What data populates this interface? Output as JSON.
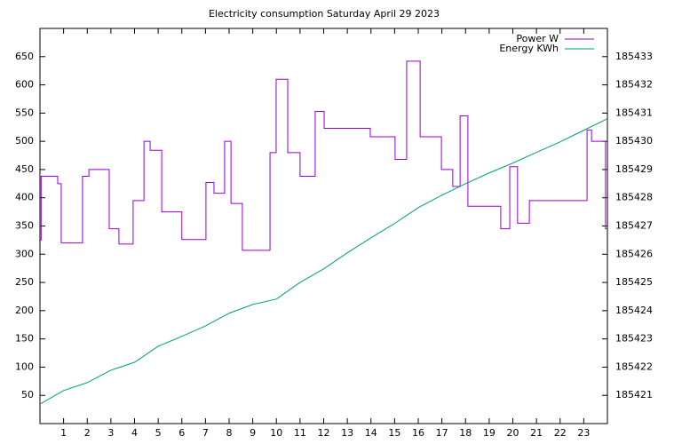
{
  "chart_data": {
    "type": "line",
    "title": "Electricity consumption Saturday April 29 2023",
    "xlim": [
      0,
      24
    ],
    "xticks": [
      1,
      2,
      3,
      4,
      5,
      6,
      7,
      8,
      9,
      10,
      11,
      12,
      13,
      14,
      15,
      16,
      17,
      18,
      19,
      20,
      21,
      22,
      23
    ],
    "ylim": [
      0,
      700
    ],
    "yticks": [
      50,
      100,
      150,
      200,
      250,
      300,
      350,
      400,
      450,
      500,
      550,
      600,
      650
    ],
    "y2lim": [
      185420,
      185434
    ],
    "y2ticks": [
      185421,
      185422,
      185423,
      185424,
      185425,
      185426,
      185427,
      185428,
      185429,
      185430,
      185431,
      185432,
      185433
    ],
    "legend": "top-right",
    "series": [
      {
        "name": "Power W",
        "color": "#9400d3",
        "x": [
          0,
          0.05,
          0.05,
          0.75,
          0.75,
          0.9,
          0.9,
          1.8,
          1.8,
          2.07,
          2.07,
          2.93,
          2.93,
          3.34,
          3.34,
          3.94,
          3.94,
          4.4,
          4.4,
          4.66,
          4.66,
          5.15,
          5.15,
          6.0,
          6.0,
          7.02,
          7.02,
          7.36,
          7.36,
          7.81,
          7.81,
          8.08,
          8.08,
          8.56,
          8.56,
          9.73,
          9.73,
          9.99,
          9.99,
          10.48,
          10.48,
          11.0,
          11.0,
          11.64,
          11.64,
          12.02,
          12.02,
          13.97,
          13.97,
          15.02,
          15.02,
          15.51,
          15.51,
          16.08,
          16.08,
          16.98,
          16.98,
          17.46,
          17.46,
          17.77,
          17.77,
          18.1,
          18.1,
          19.49,
          19.49,
          19.87,
          19.87,
          20.2,
          20.2,
          20.7,
          20.7,
          23.14,
          23.14,
          23.33,
          23.33,
          23.92,
          23.92,
          24
        ],
        "values": [
          325,
          325,
          438,
          438,
          425,
          425,
          320,
          320,
          438,
          438,
          450,
          450,
          345,
          345,
          318,
          318,
          395,
          395,
          500,
          500,
          484,
          484,
          375,
          375,
          326,
          326,
          427,
          427,
          408,
          408,
          500,
          500,
          390,
          390,
          307,
          307,
          480,
          480,
          610,
          610,
          480,
          480,
          438,
          438,
          553,
          553,
          523,
          523,
          508,
          508,
          468,
          468,
          642,
          642,
          508,
          508,
          450,
          450,
          420,
          420,
          545,
          545,
          385,
          385,
          345,
          345,
          455,
          455,
          355,
          355,
          395,
          395,
          520,
          520,
          500,
          500,
          345,
          345
        ]
      },
      {
        "name": "Energy KWh",
        "color": "#009e73",
        "axis": "y2",
        "x": [
          0,
          1,
          2,
          3,
          4,
          5,
          6,
          7,
          8,
          9,
          10,
          11,
          12,
          13,
          14,
          15,
          16,
          17,
          18,
          19,
          20,
          21,
          22,
          23,
          24
        ],
        "values": [
          185420.69,
          185421.17,
          185421.45,
          185421.89,
          185422.17,
          185422.74,
          185423.09,
          185423.46,
          185423.91,
          185424.22,
          185424.41,
          185425.0,
          185425.48,
          185426.05,
          185426.58,
          185427.09,
          185427.65,
          185428.09,
          185428.5,
          185428.88,
          185429.23,
          185429.61,
          185429.98,
          185430.39,
          185430.8
        ]
      }
    ]
  }
}
